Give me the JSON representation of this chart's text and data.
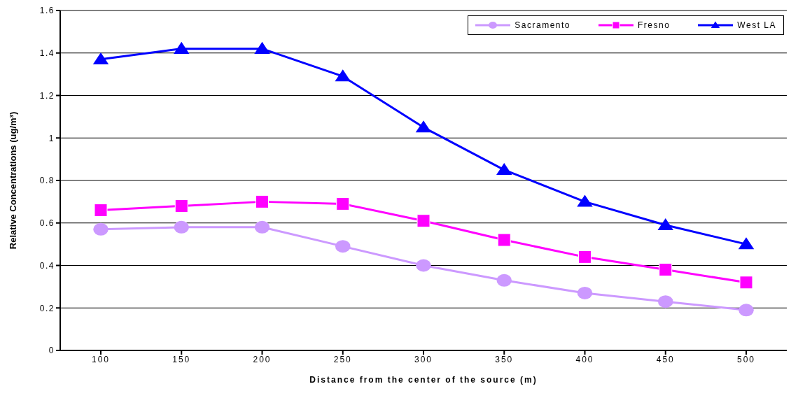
{
  "chart_data": {
    "type": "line",
    "xlabel": "Distance from the center of the source (m)",
    "ylabel": "Relative Concentrations (ug/m³)",
    "categories": [
      "100",
      "150",
      "200",
      "250",
      "300",
      "350",
      "400",
      "450",
      "500"
    ],
    "series": [
      {
        "name": "Sacramento",
        "color": "#cc99ff",
        "marker": "circle",
        "values": [
          0.57,
          0.58,
          0.58,
          0.49,
          0.4,
          0.33,
          0.27,
          0.23,
          0.19
        ]
      },
      {
        "name": "Fresno",
        "color": "#ff00ff",
        "marker": "square",
        "values": [
          0.66,
          0.68,
          0.7,
          0.69,
          0.61,
          0.52,
          0.44,
          0.38,
          0.32
        ]
      },
      {
        "name": "West LA",
        "color": "#0000ff",
        "marker": "triangle",
        "values": [
          1.37,
          1.42,
          1.42,
          1.29,
          1.05,
          0.85,
          0.7,
          0.59,
          0.5
        ]
      }
    ],
    "ylim": [
      0,
      1.6
    ],
    "yticks": [
      0,
      0.2,
      0.4,
      0.6,
      0.8,
      1,
      1.2,
      1.4,
      1.6
    ],
    "grid": "y",
    "legend": "top right",
    "line_style": "solid"
  }
}
